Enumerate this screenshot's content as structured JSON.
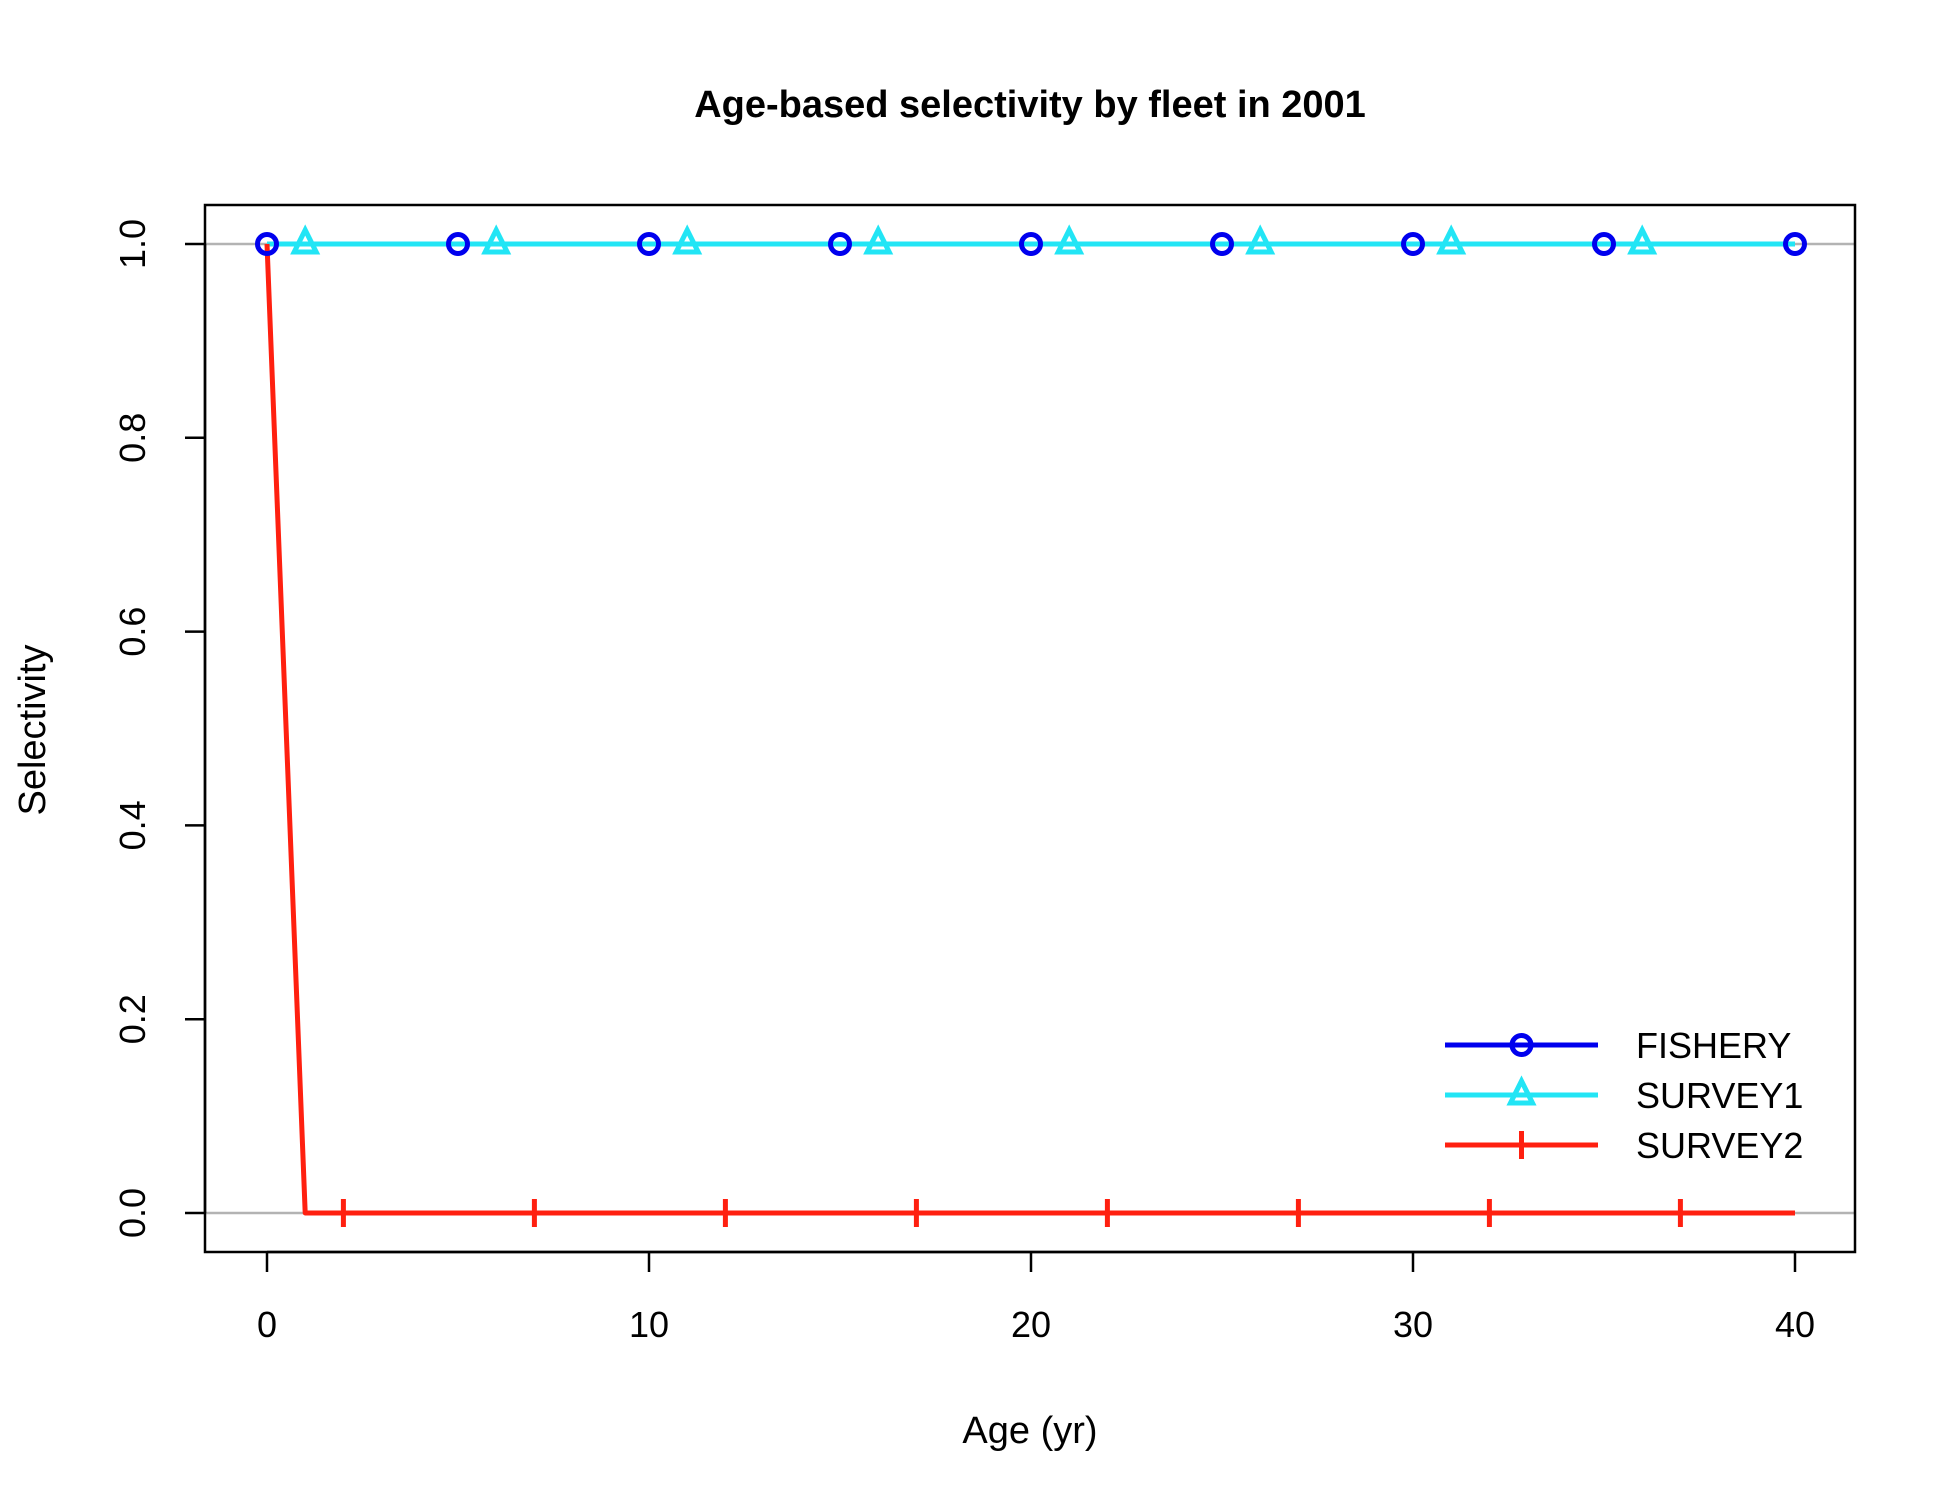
{
  "chart_data": {
    "type": "line",
    "title": "Age-based selectivity by fleet in 2001",
    "xlabel": "Age (yr)",
    "ylabel": "Selectivity",
    "xlim": [
      0,
      40
    ],
    "ylim": [
      0,
      1
    ],
    "x_ticks": [
      0,
      10,
      20,
      30,
      40
    ],
    "y_ticks": [
      0.0,
      0.2,
      0.4,
      0.6,
      0.8,
      1.0
    ],
    "x_tick_labels": [
      "0",
      "10",
      "20",
      "30",
      "40"
    ],
    "y_tick_labels": [
      "0.0",
      "0.2",
      "0.4",
      "0.6",
      "0.8",
      "1.0"
    ],
    "reference_lines": [
      0,
      1
    ],
    "legend_position": "bottom-right",
    "series": [
      {
        "name": "FISHERY",
        "color": "#0000ee",
        "marker": "circle",
        "x": [
          0,
          40
        ],
        "values": [
          1,
          1
        ],
        "marker_x": [
          0,
          5,
          10,
          15,
          20,
          25,
          30,
          35,
          40
        ]
      },
      {
        "name": "SURVEY1",
        "color": "#22e5f5",
        "marker": "triangle",
        "x": [
          0,
          40
        ],
        "values": [
          1,
          1
        ],
        "marker_x": [
          1,
          6,
          11,
          16,
          21,
          26,
          31,
          36
        ]
      },
      {
        "name": "SURVEY2",
        "color": "#ff2010",
        "marker": "plus",
        "x": [
          0,
          1,
          40
        ],
        "values": [
          1,
          0,
          0
        ],
        "marker_x": [
          2,
          7,
          12,
          17,
          22,
          27,
          32,
          37
        ]
      }
    ]
  }
}
